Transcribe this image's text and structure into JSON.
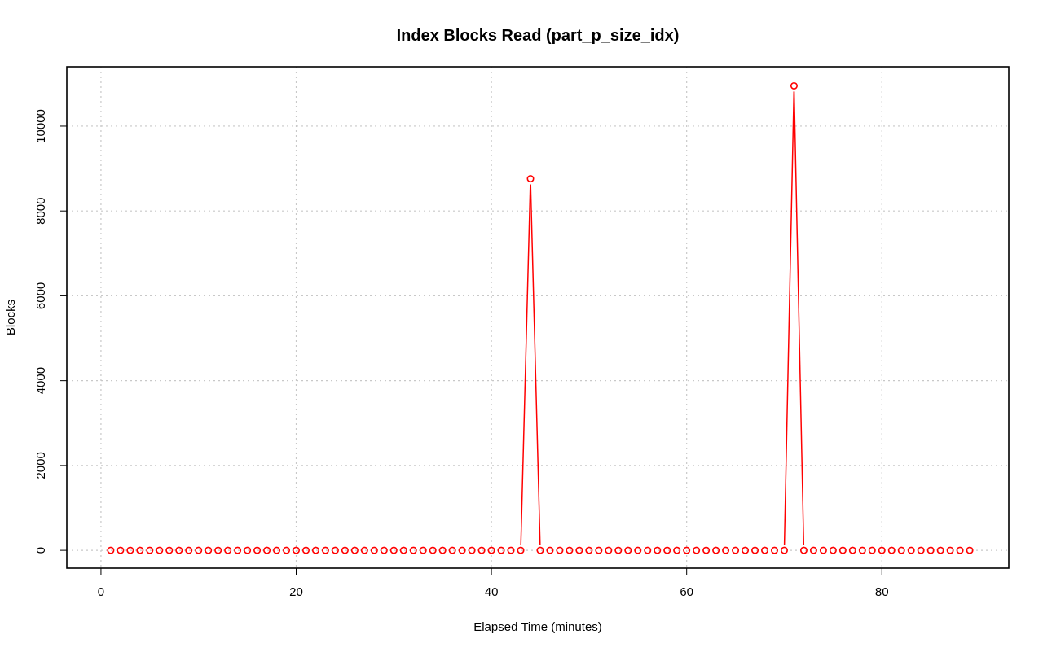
{
  "chart_data": {
    "type": "line",
    "title": "Index Blocks Read (part_p_size_idx)",
    "xlabel": "Elapsed Time (minutes)",
    "ylabel": "Blocks",
    "xlim": [
      -3.5,
      93
    ],
    "ylim": [
      -420,
      11400
    ],
    "xticks": [
      0,
      20,
      40,
      60,
      80
    ],
    "yticks": [
      0,
      2000,
      4000,
      6000,
      8000,
      10000
    ],
    "grid": true,
    "series": [
      {
        "color": "#ff0000",
        "marker": "open-circle",
        "line_style": "overplotted (type='b')",
        "x": [
          1,
          2,
          3,
          4,
          5,
          6,
          7,
          8,
          9,
          10,
          11,
          12,
          13,
          14,
          15,
          16,
          17,
          18,
          19,
          20,
          21,
          22,
          23,
          24,
          25,
          26,
          27,
          28,
          29,
          30,
          31,
          32,
          33,
          34,
          35,
          36,
          37,
          38,
          39,
          40,
          41,
          42,
          43,
          44,
          45,
          46,
          47,
          48,
          49,
          50,
          51,
          52,
          53,
          54,
          55,
          56,
          57,
          58,
          59,
          60,
          61,
          62,
          63,
          64,
          65,
          66,
          67,
          68,
          69,
          70,
          71,
          72,
          73,
          74,
          75,
          76,
          77,
          78,
          79,
          80,
          81,
          82,
          83,
          84,
          85,
          86,
          87,
          88,
          89
        ],
        "values": [
          0,
          0,
          0,
          0,
          0,
          0,
          0,
          0,
          0,
          0,
          0,
          0,
          0,
          0,
          0,
          0,
          0,
          0,
          0,
          0,
          0,
          0,
          0,
          0,
          0,
          0,
          0,
          0,
          0,
          0,
          0,
          0,
          0,
          0,
          0,
          0,
          0,
          0,
          0,
          0,
          0,
          0,
          0,
          8760,
          0,
          0,
          0,
          0,
          0,
          0,
          0,
          0,
          0,
          0,
          0,
          0,
          0,
          0,
          0,
          0,
          0,
          0,
          0,
          0,
          0,
          0,
          0,
          0,
          0,
          0,
          10950,
          0,
          0,
          0,
          0,
          0,
          0,
          0,
          0,
          0,
          0,
          0,
          0,
          0,
          0,
          0,
          0,
          0,
          0
        ]
      }
    ]
  }
}
